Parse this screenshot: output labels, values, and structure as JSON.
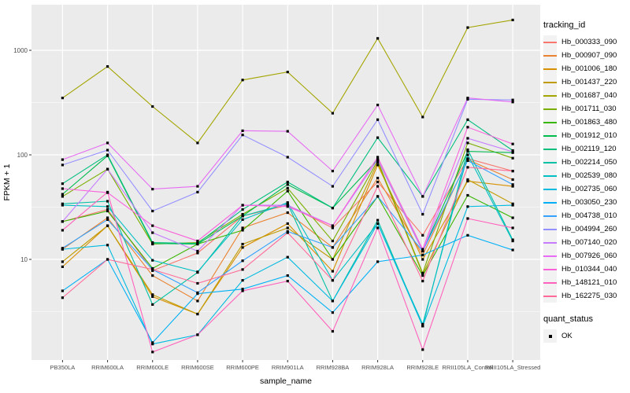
{
  "figure": {
    "background": "#FFFFFF",
    "panel_background": "#EBEBEB",
    "grid_color": "#FFFFFF",
    "tick_color": "#333333",
    "tick_text_color": "#4D4D4D",
    "text_color": "#000000"
  },
  "axes": {
    "x_title": "sample_name",
    "y_title": "FPKM + 1"
  },
  "legend": {
    "tracking_title": "tracking_id",
    "quant_title": "quant_status",
    "quant_items": [
      {
        "label": "OK",
        "color": "#000000"
      }
    ]
  },
  "chart_data": {
    "type": "line",
    "title": "",
    "xlabel": "sample_name",
    "ylabel": "FPKM + 1",
    "y_scale": "log10",
    "ylim": [
      1,
      2800
    ],
    "grid": true,
    "legend_position": "right",
    "point_color": "#000000",
    "y_ticks": [
      10,
      100,
      1000
    ],
    "y_tick_labels": [
      "10",
      "100",
      "1000"
    ],
    "y_minor_gridlines": [
      3.162,
      31.62,
      316.2
    ],
    "categories": [
      "PB350LA",
      "RRIM600LA",
      "RRIM600LE",
      "RRIM600SE",
      "RRIM600PE",
      "RRIM901LA",
      "RRIM928BA",
      "RRIM928LA",
      "RRIM928LE",
      "RRII105LA_Control",
      "RRII105LA_Stressed"
    ],
    "series": [
      {
        "name": "Hb_000333_090",
        "color": "#F8766D",
        "values": [
          23,
          30,
          7.8,
          11.5,
          26,
          33,
          20,
          55,
          17,
          92,
          70
        ]
      },
      {
        "name": "Hb_000907_090",
        "color": "#EA8331",
        "values": [
          12.5,
          25,
          7,
          4,
          20,
          28,
          13,
          60,
          11,
          90,
          58
        ]
      },
      {
        "name": "Hb_001006_180",
        "color": "#D89000",
        "values": [
          8.5,
          21,
          4.4,
          3,
          13,
          22,
          7.7,
          80,
          10,
          56,
          50
        ]
      },
      {
        "name": "Hb_001437_220",
        "color": "#C09B00",
        "values": [
          9.5,
          21,
          4.6,
          3,
          14,
          20,
          10,
          85,
          7.2,
          58,
          34
        ]
      },
      {
        "name": "Hb_001687_040",
        "color": "#A3A500",
        "values": [
          350,
          700,
          290,
          130,
          520,
          620,
          250,
          1300,
          230,
          1650,
          1950
        ]
      },
      {
        "name": "Hb_001711_030",
        "color": "#7CAE00",
        "values": [
          40,
          73,
          14,
          14.5,
          27,
          48,
          15,
          88,
          7.4,
          130,
          93
        ]
      },
      {
        "name": "Hb_001863_480",
        "color": "#39B600",
        "values": [
          23,
          29,
          8.2,
          14,
          19,
          45,
          10,
          40,
          7,
          41,
          25
        ]
      },
      {
        "name": "Hb_001912_010",
        "color": "#00BB4E",
        "values": [
          42,
          98,
          14.2,
          14,
          26,
          52,
          31,
          90,
          12,
          108,
          105
        ]
      },
      {
        "name": "Hb_002119_120",
        "color": "#00BF7D",
        "values": [
          53,
          100,
          14.5,
          14.2,
          30,
          55,
          31,
          146,
          40,
          217,
          110
        ]
      },
      {
        "name": "Hb_002214_050",
        "color": "#00C1A3",
        "values": [
          34,
          36,
          3.7,
          7.5,
          26,
          34,
          4,
          23.7,
          2.3,
          112,
          15.4
        ]
      },
      {
        "name": "Hb_002539_080",
        "color": "#00BFC4",
        "values": [
          33,
          32,
          9.8,
          7.6,
          24,
          35,
          6.3,
          22,
          2.4,
          100,
          15
        ]
      },
      {
        "name": "Hb_002735_060",
        "color": "#00BAE0",
        "values": [
          12.5,
          13.7,
          1.55,
          1.9,
          6.3,
          10.5,
          4,
          22,
          2.3,
          32,
          33
        ]
      },
      {
        "name": "Hb_003050_230",
        "color": "#00B0F6",
        "values": [
          5,
          10,
          1.6,
          4.7,
          5.2,
          7,
          3.1,
          9.5,
          11,
          17,
          12.3
        ]
      },
      {
        "name": "Hb_004738_010",
        "color": "#35A2FF",
        "values": [
          12.8,
          24,
          8,
          4.8,
          9.7,
          18.5,
          13,
          40,
          12,
          88,
          52
        ]
      },
      {
        "name": "Hb_004994_260",
        "color": "#9590FF",
        "values": [
          80,
          111,
          29,
          44,
          155,
          95,
          50,
          217,
          27,
          340,
          335
        ]
      },
      {
        "name": "Hb_007140_020",
        "color": "#C77CFF",
        "values": [
          23,
          73,
          18,
          12,
          33,
          33,
          21,
          90,
          12,
          144,
          107
        ]
      },
      {
        "name": "Hb_007926_060",
        "color": "#E76BF3",
        "values": [
          90,
          130,
          47,
          50,
          170,
          168,
          70,
          300,
          40,
          350,
          320
        ]
      },
      {
        "name": "Hb_010344_040",
        "color": "#FA62DB",
        "values": [
          47.5,
          43.5,
          21,
          15,
          33,
          32,
          21,
          95,
          12.5,
          184,
          127
        ]
      },
      {
        "name": "Hb_148121_010",
        "color": "#FF62BC",
        "values": [
          19,
          44,
          1.3,
          1.9,
          5,
          6.2,
          2.05,
          20,
          1.37,
          24.6,
          20
        ]
      },
      {
        "name": "Hb_162275_030",
        "color": "#FF6A98",
        "values": [
          4.3,
          10,
          8,
          5.9,
          8,
          18,
          6.3,
          50,
          6.2,
          76,
          70
        ]
      }
    ]
  }
}
